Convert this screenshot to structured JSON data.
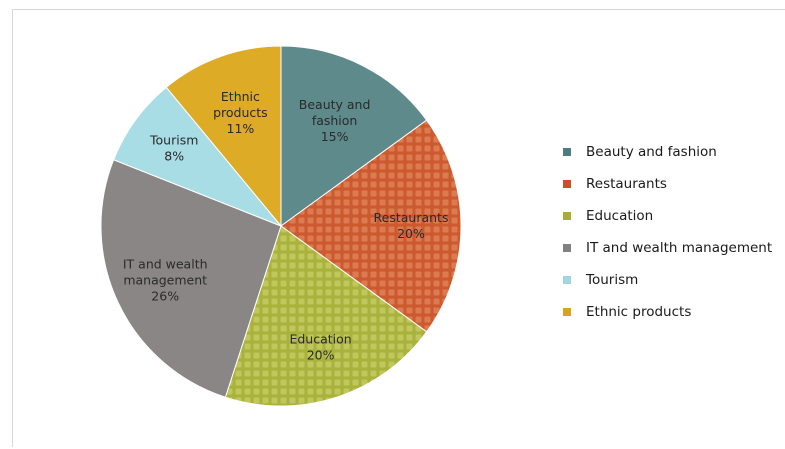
{
  "chart_data": {
    "type": "pie",
    "title": "",
    "slices": [
      {
        "name": "Beauty and fashion",
        "label_lines": [
          "Beauty and",
          "fashion",
          "15%"
        ],
        "value": 15,
        "color": "#5e8a8c",
        "pattern": false
      },
      {
        "name": "Restaurants",
        "label_lines": [
          "Restaurants",
          "20%"
        ],
        "value": 20,
        "color": "#cc5a2e",
        "pattern": true
      },
      {
        "name": "Education",
        "label_lines": [
          "Education",
          "20%"
        ],
        "value": 20,
        "color": "#a8b23c",
        "pattern": true
      },
      {
        "name": "IT and wealth management",
        "label_lines": [
          "IT and wealth",
          "management",
          "26%"
        ],
        "value": 26,
        "color": "#8b8686",
        "pattern": false
      },
      {
        "name": "Tourism",
        "label_lines": [
          "Tourism",
          "8%"
        ],
        "value": 8,
        "color": "#a9dde6",
        "pattern": false
      },
      {
        "name": "Ethnic products",
        "label_lines": [
          "Ethnic",
          "products",
          "11%"
        ],
        "value": 11,
        "color": "#deab27",
        "pattern": false
      }
    ],
    "legend_position": "right"
  },
  "legend": {
    "items": [
      {
        "label": "Beauty and fashion",
        "color": "#4d7c80"
      },
      {
        "label": "Restaurants",
        "color": "#c9502a"
      },
      {
        "label": "Education",
        "color": "#a5ae3a"
      },
      {
        "label": "IT and wealth management",
        "color": "#808080"
      },
      {
        "label": "Tourism",
        "color": "#9fd6e2"
      },
      {
        "label": "Ethnic products",
        "color": "#d9a21f"
      }
    ]
  }
}
